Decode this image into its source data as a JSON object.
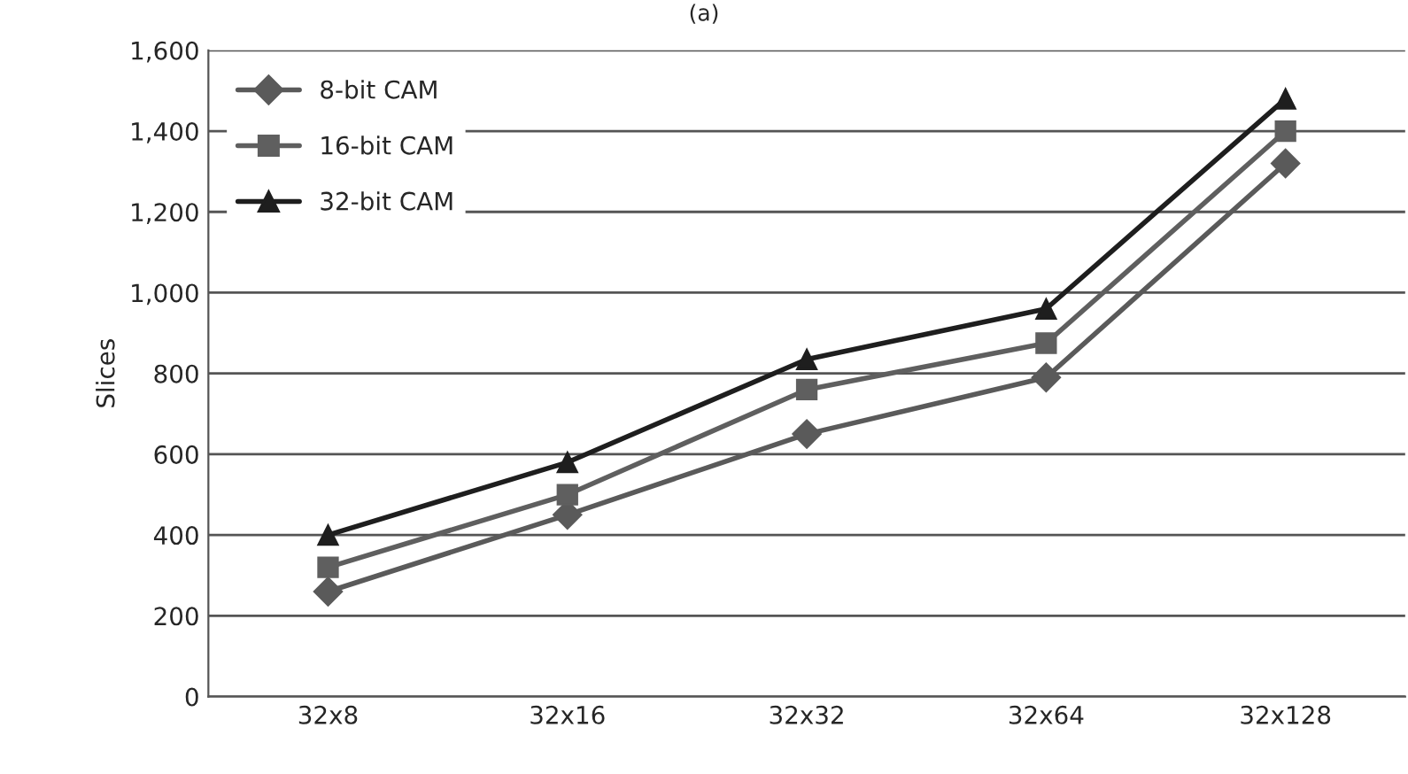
{
  "chart_data": {
    "type": "line",
    "title": "(a)",
    "ylabel": "Slices",
    "categories": [
      "32x8",
      "32x16",
      "32x32",
      "32x64",
      "32x128"
    ],
    "series": [
      {
        "name": "8-bit CAM",
        "color": "#5a5a5a",
        "marker": "diamond",
        "values": [
          260,
          450,
          650,
          790,
          1320
        ]
      },
      {
        "name": "16-bit CAM",
        "color": "#5f5f5f",
        "marker": "square",
        "values": [
          320,
          500,
          760,
          875,
          1400
        ]
      },
      {
        "name": "32-bit CAM",
        "color": "#1e1e1e",
        "marker": "triangle",
        "values": [
          400,
          580,
          835,
          960,
          1480
        ]
      }
    ],
    "ylim": [
      0,
      1600
    ],
    "yticks": [
      {
        "value": 0,
        "label": "0"
      },
      {
        "value": 200,
        "label": "200"
      },
      {
        "value": 400,
        "label": "400"
      },
      {
        "value": 600,
        "label": "600"
      },
      {
        "value": 800,
        "label": "800"
      },
      {
        "value": 1000,
        "label": "1,000"
      },
      {
        "value": 1200,
        "label": "1,200"
      },
      {
        "value": 1400,
        "label": "1,400"
      },
      {
        "value": 1600,
        "label": "1,600"
      }
    ],
    "grid": "y",
    "legend": "top left",
    "line_style": "solid"
  }
}
